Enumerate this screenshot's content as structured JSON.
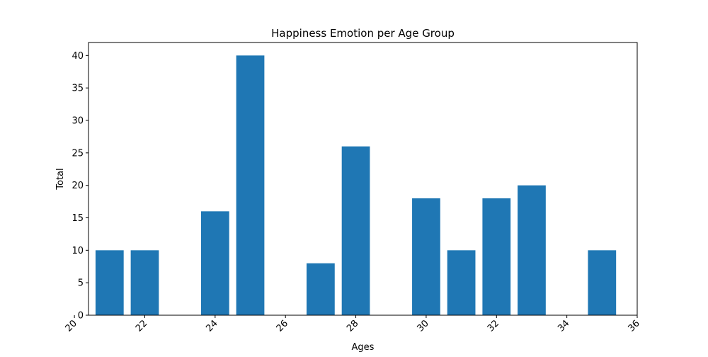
{
  "chart_data": {
    "type": "bar",
    "title": "Happiness Emotion per Age Group",
    "xlabel": "Ages",
    "ylabel": "Total",
    "x": [
      21,
      22,
      24,
      25,
      27,
      28,
      30,
      31,
      32,
      33,
      35
    ],
    "values": [
      10,
      10,
      16,
      40,
      8,
      26,
      18,
      10,
      18,
      20,
      10
    ],
    "bar_width": 0.8,
    "xlim": [
      20.4,
      36.0
    ],
    "ylim": [
      0,
      42
    ],
    "xticks": [
      20,
      22,
      24,
      26,
      28,
      30,
      32,
      34,
      36
    ],
    "yticks": [
      0,
      5,
      10,
      15,
      20,
      25,
      30,
      35,
      40
    ],
    "xtick_rotation": -45,
    "bar_color": "#1f77b4",
    "grid": false,
    "legend": "none"
  }
}
